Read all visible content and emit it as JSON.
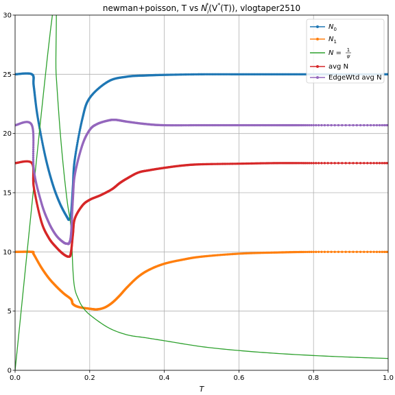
{
  "chart_data": {
    "type": "line",
    "title": "newman+poisson, T vs Nᵢ*(V*(T)), vlogtaper2510",
    "title_parts": {
      "prefix": "newman+poisson, T vs ",
      "N": "N",
      "sub": "i",
      "sup1": "*",
      "mid": "(V",
      "sup2": "*",
      "suffix": "(T)), vlogtaper2510"
    },
    "xlabel": "T",
    "ylabel": "",
    "xlim": [
      0,
      1
    ],
    "ylim": [
      0,
      30
    ],
    "xticks": [
      0,
      0.2,
      0.4,
      0.6,
      0.8,
      1.0
    ],
    "xtick_labels": [
      "0.0",
      "0.2",
      "0.4",
      "0.6",
      "0.8",
      "1.0"
    ],
    "yticks": [
      0,
      5,
      10,
      15,
      20,
      25,
      30
    ],
    "ytick_labels": [
      "0",
      "5",
      "10",
      "15",
      "20",
      "25",
      "30"
    ],
    "grid": true,
    "legend_position": "top-right",
    "series": [
      {
        "name": "N0",
        "legend_main": "N",
        "legend_sub": "0",
        "color": "#1f77b4",
        "marker": true,
        "x": [
          0,
          0.045,
          0.05,
          0.06,
          0.08,
          0.1,
          0.12,
          0.14,
          0.145,
          0.15,
          0.155,
          0.16,
          0.18,
          0.2,
          0.25,
          0.3,
          0.35,
          0.4,
          0.5,
          0.6,
          0.7,
          0.8,
          0.9,
          1.0
        ],
        "y": [
          25,
          25,
          24.0,
          21.5,
          18.2,
          15.8,
          14.1,
          12.9,
          12.75,
          13.2,
          15.5,
          17.8,
          21.2,
          23.0,
          24.4,
          24.8,
          24.9,
          24.95,
          25,
          25,
          25,
          25,
          25,
          25
        ]
      },
      {
        "name": "N1",
        "legend_main": "N",
        "legend_sub": "1",
        "color": "#ff7f0e",
        "marker": true,
        "x": [
          0,
          0.045,
          0.05,
          0.07,
          0.09,
          0.11,
          0.13,
          0.15,
          0.155,
          0.17,
          0.2,
          0.22,
          0.24,
          0.26,
          0.28,
          0.3,
          0.33,
          0.36,
          0.4,
          0.45,
          0.5,
          0.6,
          0.7,
          0.8,
          1.0
        ],
        "y": [
          10,
          10,
          9.8,
          8.7,
          7.8,
          7.1,
          6.5,
          6.0,
          5.6,
          5.35,
          5.2,
          5.15,
          5.3,
          5.7,
          6.3,
          7.0,
          7.9,
          8.5,
          9.0,
          9.35,
          9.6,
          9.85,
          9.95,
          10,
          10
        ]
      },
      {
        "name": "N = 1/ψ",
        "legend_prefix": "N = ",
        "legend_num": "1",
        "legend_den": "ψ",
        "color": "#2ca02c",
        "marker": false,
        "x": [
          0.0,
          0.1,
          0.11,
          0.12,
          0.13,
          0.14,
          0.15,
          0.155,
          0.16,
          0.17,
          0.18,
          0.2,
          0.25,
          0.3,
          0.35,
          0.4,
          0.5,
          0.6,
          0.7,
          0.8,
          0.9,
          1.0
        ],
        "y": [
          0,
          30,
          25.0,
          20.5,
          17.0,
          14.2,
          12.0,
          8.5,
          6.9,
          6.0,
          5.4,
          4.7,
          3.6,
          3.0,
          2.75,
          2.5,
          2.0,
          1.67,
          1.43,
          1.25,
          1.11,
          1.0
        ]
      },
      {
        "name": "avg N",
        "legend_main": "avg N",
        "color": "#d62728",
        "marker": true,
        "x": [
          0,
          0.045,
          0.05,
          0.07,
          0.09,
          0.11,
          0.13,
          0.145,
          0.15,
          0.155,
          0.16,
          0.18,
          0.2,
          0.23,
          0.26,
          0.28,
          0.3,
          0.33,
          0.36,
          0.4,
          0.45,
          0.5,
          0.6,
          0.7,
          0.8,
          1.0
        ],
        "y": [
          17.5,
          17.5,
          15.5,
          12.6,
          11.2,
          10.4,
          9.8,
          9.6,
          10.0,
          11.5,
          12.8,
          13.9,
          14.4,
          14.8,
          15.3,
          15.8,
          16.2,
          16.7,
          16.9,
          17.1,
          17.3,
          17.4,
          17.45,
          17.5,
          17.5,
          17.5
        ]
      },
      {
        "name": "EdgeWtd avg N",
        "legend_main": "EdgeWtd avg N",
        "color": "#9467bd",
        "marker": true,
        "x": [
          0,
          0.045,
          0.05,
          0.07,
          0.09,
          0.11,
          0.13,
          0.14,
          0.145,
          0.15,
          0.155,
          0.16,
          0.18,
          0.2,
          0.22,
          0.25,
          0.27,
          0.3,
          0.35,
          0.4,
          0.5,
          0.6,
          0.7,
          0.8,
          1.0
        ],
        "y": [
          20.7,
          20.7,
          17.0,
          14.2,
          12.5,
          11.4,
          10.8,
          10.7,
          10.75,
          11.5,
          14.5,
          16.5,
          19.0,
          20.3,
          20.8,
          21.1,
          21.15,
          21.0,
          20.8,
          20.7,
          20.7,
          20.7,
          20.7,
          20.7,
          20.7
        ]
      }
    ]
  }
}
